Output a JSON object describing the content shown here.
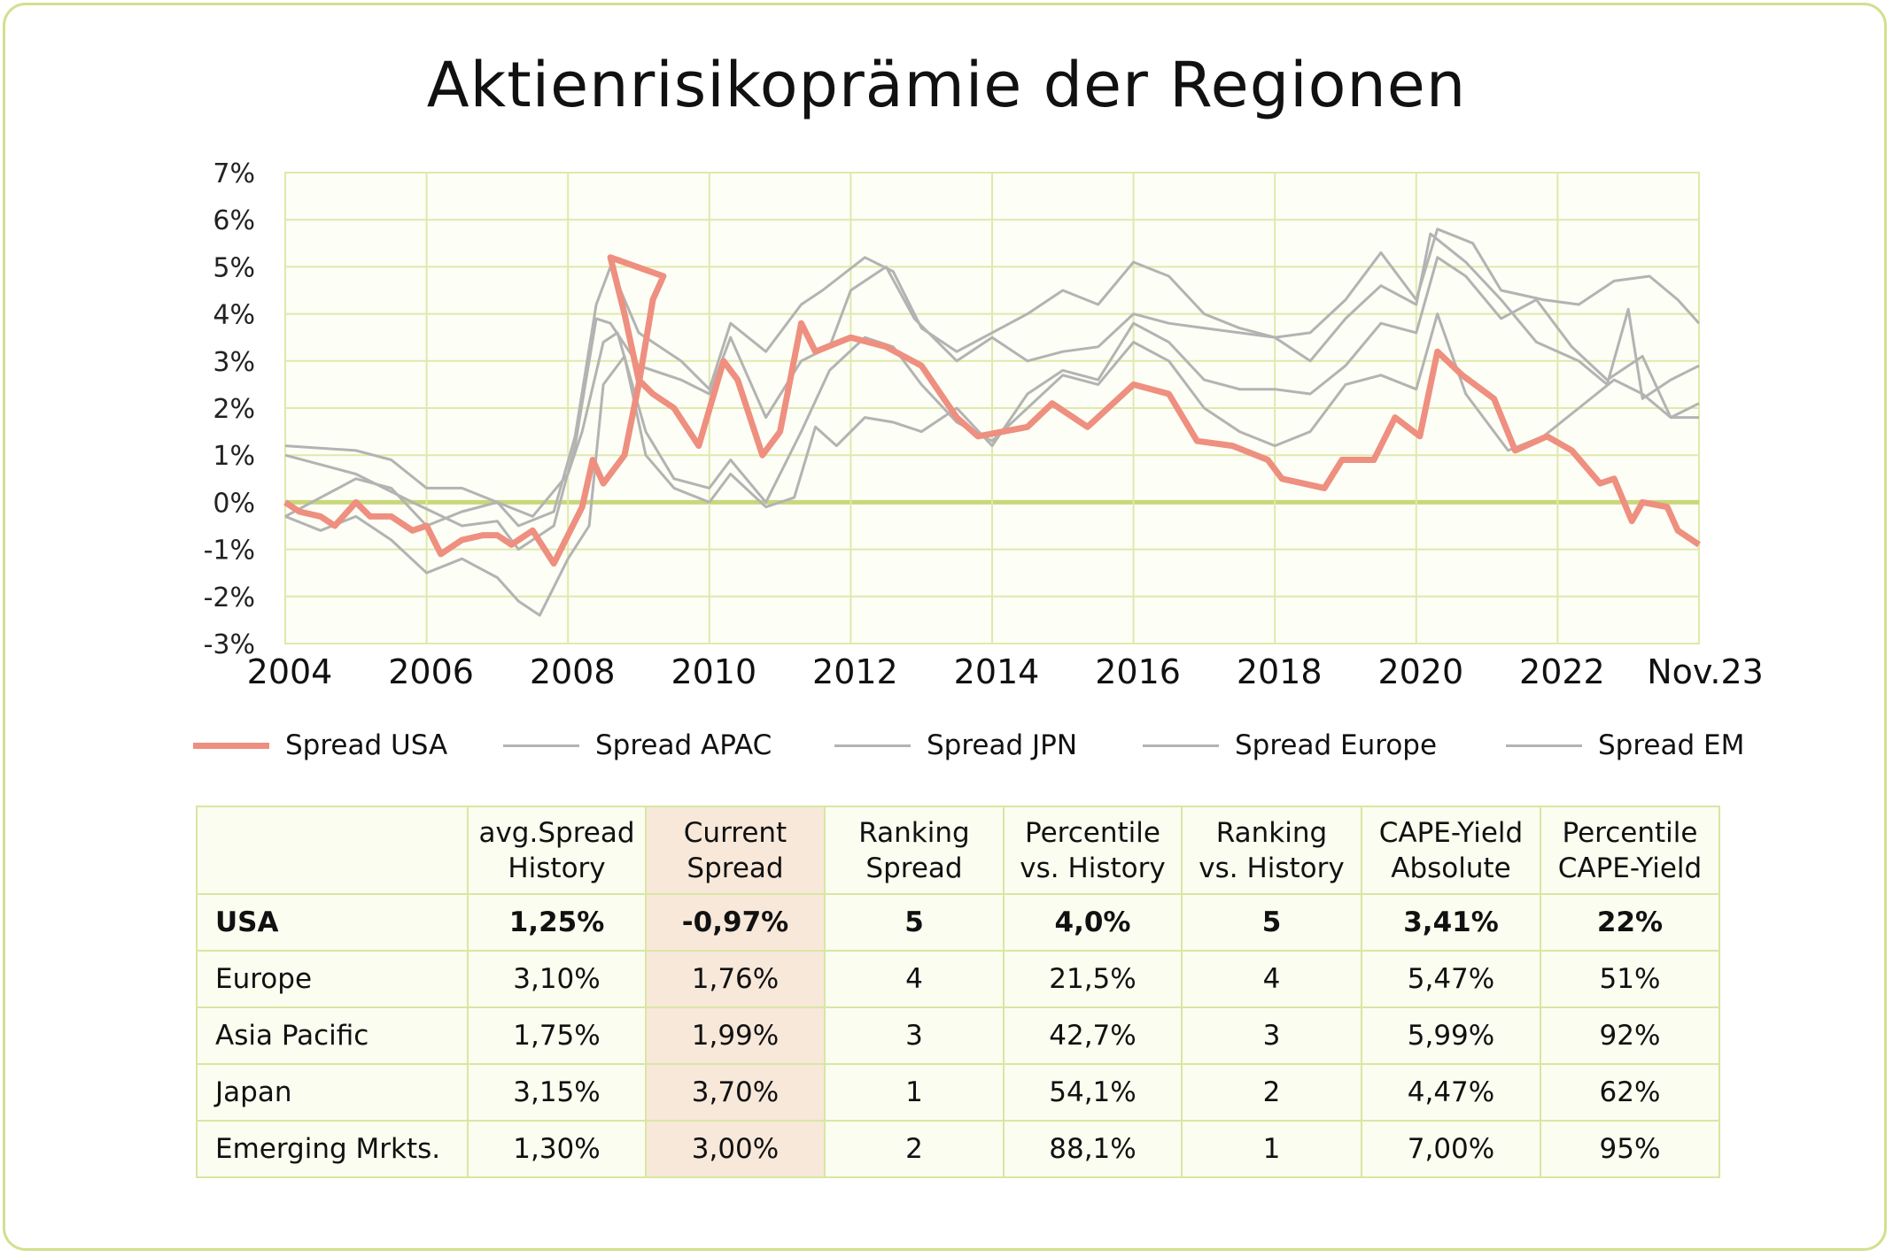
{
  "chart_data": {
    "type": "line",
    "title": "Aktienrisikoprämie der Regionen",
    "x_tick_labels": [
      "2004",
      "2006",
      "2008",
      "2010",
      "2012",
      "2014",
      "2016",
      "2018",
      "2020",
      "2022",
      "Nov.23"
    ],
    "x_tick_values": [
      2004,
      2006,
      2008,
      2010,
      2012,
      2014,
      2016,
      2018,
      2020,
      2022,
      2023.9
    ],
    "y_tick_labels": [
      "7%",
      "6%",
      "5%",
      "4%",
      "3%",
      "2%",
      "1%",
      "0%",
      "-1%",
      "-2%",
      "-3%"
    ],
    "ylim": [
      -3,
      7
    ],
    "xlim": [
      2004,
      2024
    ],
    "grid": true,
    "legend_position": "bottom",
    "colors": {
      "usa": "#ee8f80",
      "others": "#b3b3b3",
      "grid": "#dfe9ad",
      "zero_line": "#c9d77a",
      "plot_bg": "#fdfef6"
    },
    "series": [
      {
        "name": "Spread USA",
        "color": "#ee8f80",
        "points": [
          [
            2004,
            0
          ],
          [
            2004.2,
            -0.2
          ],
          [
            2004.5,
            -0.3
          ],
          [
            2004.7,
            -0.5
          ],
          [
            2005,
            0
          ],
          [
            2005.2,
            -0.3
          ],
          [
            2005.5,
            -0.3
          ],
          [
            2005.8,
            -0.6
          ],
          [
            2006,
            -0.5
          ],
          [
            2006.2,
            -1.1
          ],
          [
            2006.5,
            -0.8
          ],
          [
            2006.8,
            -0.7
          ],
          [
            2007,
            -0.7
          ],
          [
            2007.2,
            -0.9
          ],
          [
            2007.5,
            -0.6
          ],
          [
            2007.8,
            -1.3
          ],
          [
            2008,
            -0.7
          ],
          [
            2008.2,
            -0.1
          ],
          [
            2008.35,
            0.9
          ],
          [
            2008.5,
            0.4
          ],
          [
            2008.8,
            1.0
          ],
          [
            2009.0,
            2.5
          ],
          [
            2009.2,
            4.3
          ],
          [
            2008.6,
            5.2
          ]
        ]
      },
      {
        "name": "Spread APAC",
        "color": "#b3b3b3",
        "points": [
          [
            2004,
            1.2
          ],
          [
            2005,
            1.1
          ],
          [
            2005.5,
            0.9
          ],
          [
            2006,
            0.3
          ],
          [
            2006.5,
            0.3
          ],
          [
            2007,
            0.0
          ],
          [
            2007.3,
            -0.5
          ],
          [
            2007.8,
            -0.2
          ],
          [
            2008.1,
            1.4
          ],
          [
            2008.4,
            4.2
          ],
          [
            2008.6,
            5.0
          ],
          [
            2009.0,
            3.6
          ],
          [
            2009.6,
            3.0
          ],
          [
            2010,
            2.4
          ],
          [
            2010.3,
            3.8
          ],
          [
            2010.8,
            3.2
          ],
          [
            2011.3,
            4.2
          ],
          [
            2011.6,
            4.5
          ],
          [
            2012.2,
            5.2
          ],
          [
            2012.6,
            4.9
          ],
          [
            2013,
            3.7
          ],
          [
            2013.5,
            3.2
          ],
          [
            2014,
            3.6
          ],
          [
            2014.5,
            4.0
          ],
          [
            2015,
            4.5
          ],
          [
            2015.5,
            4.2
          ],
          [
            2016,
            5.1
          ],
          [
            2016.5,
            4.8
          ],
          [
            2017,
            4.0
          ],
          [
            2017.5,
            3.7
          ],
          [
            2018,
            3.5
          ],
          [
            2018.5,
            3.6
          ],
          [
            2019,
            4.3
          ],
          [
            2019.5,
            5.3
          ],
          [
            2020,
            4.3
          ],
          [
            2020.3,
            5.8
          ],
          [
            2020.8,
            5.5
          ],
          [
            2021.2,
            4.5
          ],
          [
            2021.8,
            4.3
          ],
          [
            2022.3,
            4.2
          ],
          [
            2022.8,
            4.7
          ],
          [
            2023.3,
            4.8
          ],
          [
            2023.7,
            4.3
          ],
          [
            2024,
            3.8
          ]
        ]
      },
      {
        "name": "Spread JPN",
        "color": "#b3b3b3",
        "points": [
          [
            2004,
            1.0
          ],
          [
            2005,
            0.6
          ],
          [
            2005.8,
            0.0
          ],
          [
            2006.5,
            -0.5
          ],
          [
            2007,
            -0.4
          ],
          [
            2007.3,
            -1.0
          ],
          [
            2007.8,
            -0.5
          ],
          [
            2008.1,
            1.2
          ],
          [
            2008.4,
            3.9
          ],
          [
            2008.6,
            3.8
          ],
          [
            2009.0,
            2.9
          ],
          [
            2009.6,
            2.6
          ],
          [
            2010,
            2.3
          ],
          [
            2010.3,
            3.5
          ],
          [
            2010.8,
            1.8
          ],
          [
            2011.3,
            3.0
          ],
          [
            2011.7,
            3.3
          ],
          [
            2012,
            4.5
          ],
          [
            2012.5,
            5.0
          ],
          [
            2012.9,
            3.9
          ],
          [
            2013.5,
            3.0
          ],
          [
            2014,
            3.5
          ],
          [
            2014.5,
            3.0
          ],
          [
            2015,
            3.2
          ],
          [
            2015.5,
            3.3
          ],
          [
            2016,
            4.0
          ],
          [
            2016.5,
            3.8
          ],
          [
            2017,
            3.7
          ],
          [
            2017.5,
            3.6
          ],
          [
            2018,
            3.5
          ],
          [
            2018.5,
            3.0
          ],
          [
            2019,
            3.9
          ],
          [
            2019.5,
            4.6
          ],
          [
            2020,
            4.2
          ],
          [
            2020.2,
            5.7
          ],
          [
            2020.7,
            5.1
          ],
          [
            2021.2,
            4.3
          ],
          [
            2021.7,
            3.4
          ],
          [
            2022.3,
            3.0
          ],
          [
            2022.7,
            2.5
          ],
          [
            2023.0,
            4.1
          ],
          [
            2023.2,
            2.2
          ],
          [
            2023.6,
            2.6
          ],
          [
            2024,
            2.9
          ]
        ]
      },
      {
        "name": "Spread Europe",
        "color": "#b3b3b3",
        "points": [
          [
            2004,
            -0.3
          ],
          [
            2004.5,
            0.1
          ],
          [
            2005,
            0.5
          ],
          [
            2005.5,
            0.3
          ],
          [
            2006,
            -0.5
          ],
          [
            2006.5,
            -0.2
          ],
          [
            2007,
            0.0
          ],
          [
            2007.5,
            -0.3
          ],
          [
            2008,
            0.6
          ],
          [
            2008.2,
            1.5
          ],
          [
            2008.5,
            3.4
          ],
          [
            2008.7,
            3.6
          ],
          [
            2009.1,
            1.5
          ],
          [
            2009.5,
            0.5
          ],
          [
            2010,
            0.3
          ],
          [
            2010.3,
            0.9
          ],
          [
            2010.8,
            0.0
          ],
          [
            2011.3,
            1.5
          ],
          [
            2011.7,
            2.8
          ],
          [
            2012.2,
            3.5
          ],
          [
            2012.6,
            3.3
          ],
          [
            2013,
            2.5
          ],
          [
            2013.5,
            1.7
          ],
          [
            2014,
            1.3
          ],
          [
            2014.5,
            2.0
          ],
          [
            2015,
            2.7
          ],
          [
            2015.5,
            2.5
          ],
          [
            2016,
            3.4
          ],
          [
            2016.5,
            3.0
          ],
          [
            2017,
            2.0
          ],
          [
            2017.5,
            1.5
          ],
          [
            2018,
            1.2
          ],
          [
            2018.5,
            1.5
          ],
          [
            2019,
            2.5
          ],
          [
            2019.5,
            2.7
          ],
          [
            2020,
            2.4
          ],
          [
            2020.3,
            4.0
          ],
          [
            2020.7,
            2.3
          ],
          [
            2021.3,
            1.1
          ],
          [
            2021.8,
            1.4
          ],
          [
            2022.3,
            2.0
          ],
          [
            2022.8,
            2.6
          ],
          [
            2023.2,
            2.3
          ],
          [
            2023.6,
            1.8
          ],
          [
            2024,
            2.1
          ]
        ]
      },
      {
        "name": "Spread EM",
        "color": "#b3b3b3",
        "points": [
          [
            2004,
            -0.3
          ],
          [
            2004.5,
            -0.6
          ],
          [
            2005,
            -0.3
          ],
          [
            2005.5,
            -0.8
          ],
          [
            2006,
            -1.5
          ],
          [
            2006.5,
            -1.2
          ],
          [
            2007,
            -1.6
          ],
          [
            2007.3,
            -2.1
          ],
          [
            2007.6,
            -2.4
          ],
          [
            2008,
            -1.2
          ],
          [
            2008.3,
            -0.5
          ],
          [
            2008.5,
            2.5
          ],
          [
            2008.8,
            3.1
          ],
          [
            2009.1,
            1.0
          ],
          [
            2009.5,
            0.3
          ],
          [
            2010,
            0.0
          ],
          [
            2010.3,
            0.6
          ],
          [
            2010.8,
            -0.1
          ],
          [
            2011.2,
            0.1
          ],
          [
            2011.5,
            1.6
          ],
          [
            2011.8,
            1.2
          ],
          [
            2012.2,
            1.8
          ],
          [
            2012.6,
            1.7
          ],
          [
            2013,
            1.5
          ],
          [
            2013.5,
            2.0
          ],
          [
            2014,
            1.2
          ],
          [
            2014.5,
            2.3
          ],
          [
            2015,
            2.8
          ],
          [
            2015.5,
            2.6
          ],
          [
            2016,
            3.8
          ],
          [
            2016.5,
            3.4
          ],
          [
            2017,
            2.6
          ],
          [
            2017.5,
            2.4
          ],
          [
            2018,
            2.4
          ],
          [
            2018.5,
            2.3
          ],
          [
            2019,
            2.9
          ],
          [
            2019.5,
            3.8
          ],
          [
            2020,
            3.6
          ],
          [
            2020.3,
            5.2
          ],
          [
            2020.7,
            4.8
          ],
          [
            2021.2,
            3.9
          ],
          [
            2021.7,
            4.3
          ],
          [
            2022.2,
            3.3
          ],
          [
            2022.7,
            2.6
          ],
          [
            2023.2,
            3.1
          ],
          [
            2023.6,
            1.8
          ],
          [
            2024,
            1.8
          ]
        ]
      }
    ]
  },
  "usa_rest": [
    [
      2008.6,
      5.2
    ],
    [
      2008.8,
      4.0
    ],
    [
      2009.0,
      2.6
    ],
    [
      2009.2,
      2.3
    ],
    [
      2009.5,
      2.0
    ],
    [
      2009.85,
      1.2
    ],
    [
      2010.2,
      3.0
    ],
    [
      2010.4,
      2.6
    ],
    [
      2010.75,
      1.0
    ],
    [
      2011.0,
      1.5
    ],
    [
      2011.3,
      3.8
    ],
    [
      2011.5,
      3.2
    ],
    [
      2012.0,
      3.5
    ],
    [
      2012.5,
      3.3
    ],
    [
      2013.0,
      2.9
    ],
    [
      2013.5,
      1.8
    ],
    [
      2013.8,
      1.4
    ],
    [
      2014.5,
      1.6
    ],
    [
      2014.85,
      2.1
    ],
    [
      2015.35,
      1.6
    ],
    [
      2016.0,
      2.5
    ],
    [
      2016.5,
      2.3
    ],
    [
      2016.9,
      1.3
    ],
    [
      2017.4,
      1.2
    ],
    [
      2017.9,
      0.9
    ],
    [
      2018.1,
      0.5
    ],
    [
      2018.7,
      0.3
    ],
    [
      2018.95,
      0.9
    ],
    [
      2019.4,
      0.9
    ],
    [
      2019.7,
      1.8
    ],
    [
      2020.05,
      1.4
    ],
    [
      2020.3,
      3.2
    ],
    [
      2020.65,
      2.7
    ],
    [
      2021.1,
      2.2
    ],
    [
      2021.4,
      1.1
    ],
    [
      2021.85,
      1.4
    ],
    [
      2022.2,
      1.1
    ],
    [
      2022.6,
      0.4
    ],
    [
      2022.8,
      0.5
    ],
    [
      2023.05,
      -0.4
    ],
    [
      2023.2,
      0
    ],
    [
      2023.55,
      -0.1
    ],
    [
      2023.7,
      -0.6
    ],
    [
      2024.0,
      -0.9
    ]
  ],
  "legend": [
    "Spread USA",
    "Spread APAC",
    "Spread JPN",
    "Spread Europe",
    "Spread EM"
  ],
  "table": {
    "headers": [
      "",
      "avg.Spread\nHistory",
      "Current\nSpread",
      "Ranking\nSpread",
      "Percentile\nvs. History",
      "Ranking\nvs. History",
      "CAPE-Yield\nAbsolute",
      "Percentile\nCAPE-Yield"
    ],
    "rows": [
      [
        "USA",
        "1,25%",
        "-0,97%",
        "5",
        "4,0%",
        "5",
        "3,41%",
        "22%"
      ],
      [
        "Europe",
        "3,10%",
        "1,76%",
        "4",
        "21,5%",
        "4",
        "5,47%",
        "51%"
      ],
      [
        "Asia Pacific",
        "1,75%",
        "1,99%",
        "3",
        "42,7%",
        "3",
        "5,99%",
        "92%"
      ],
      [
        "Japan",
        "3,15%",
        "3,70%",
        "1",
        "54,1%",
        "2",
        "4,47%",
        "62%"
      ],
      [
        "Emerging Mrkts.",
        "1,30%",
        "3,00%",
        "2",
        "88,1%",
        "1",
        "7,00%",
        "95%"
      ]
    ]
  }
}
